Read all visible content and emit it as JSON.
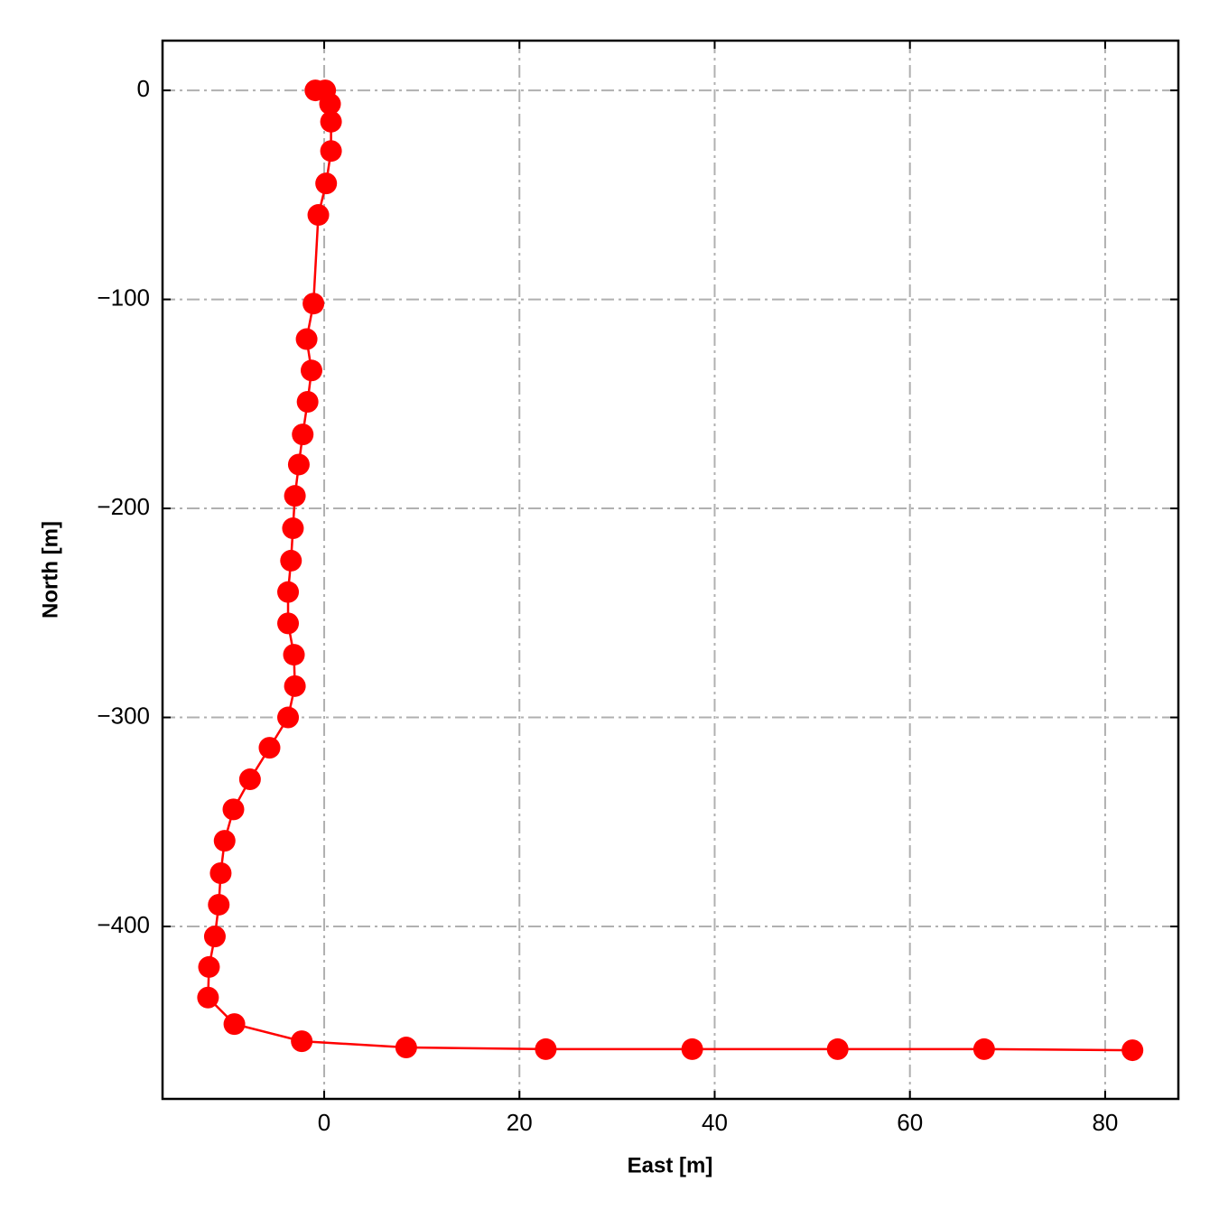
{
  "chart_data": {
    "type": "line",
    "x_label": "East [m]",
    "y_label": "North [m]",
    "series": [
      {
        "color": "#ff0000",
        "x": [
          -0.9,
          0.1,
          0.6,
          0.7,
          0.7,
          0.2,
          -0.6,
          -1.1,
          -1.8,
          -1.3,
          -1.7,
          -2.2,
          -2.6,
          -3.0,
          -3.2,
          -3.4,
          -3.7,
          -3.7,
          -3.1,
          -3.0,
          -3.7,
          -5.6,
          -7.6,
          -9.3,
          -10.2,
          -10.6,
          -10.8,
          -11.2,
          -11.8,
          -11.9,
          -9.2,
          -2.3,
          8.4,
          22.7,
          37.7,
          52.6,
          67.6,
          82.8
        ],
        "values": [
          0,
          0,
          -6.5,
          -15,
          -29,
          -44.5,
          -59.6,
          -102,
          -119,
          -134,
          -149,
          -164.6,
          -179,
          -194,
          -209.5,
          -225,
          -240,
          -255,
          -270,
          -285,
          -300,
          -314.5,
          -329.6,
          -344,
          -359,
          -374.5,
          -389.6,
          -404.8,
          -419.4,
          -434,
          -446.7,
          -454.9,
          -457.9,
          -458.7,
          -458.7,
          -458.7,
          -458.7,
          -459.2
        ]
      }
    ],
    "xlim": [
      -16.56,
      87.5
    ],
    "ylim": [
      -482.5,
      23.8
    ],
    "xticks": [
      0,
      20,
      40,
      60,
      80
    ],
    "yticks": [
      0,
      {
        "value": -100,
        "label": "−100"
      },
      {
        "value": -200,
        "label": "−200"
      },
      {
        "value": -300,
        "label": "−300"
      },
      {
        "value": -400,
        "label": "−400"
      }
    ],
    "grid": true
  }
}
